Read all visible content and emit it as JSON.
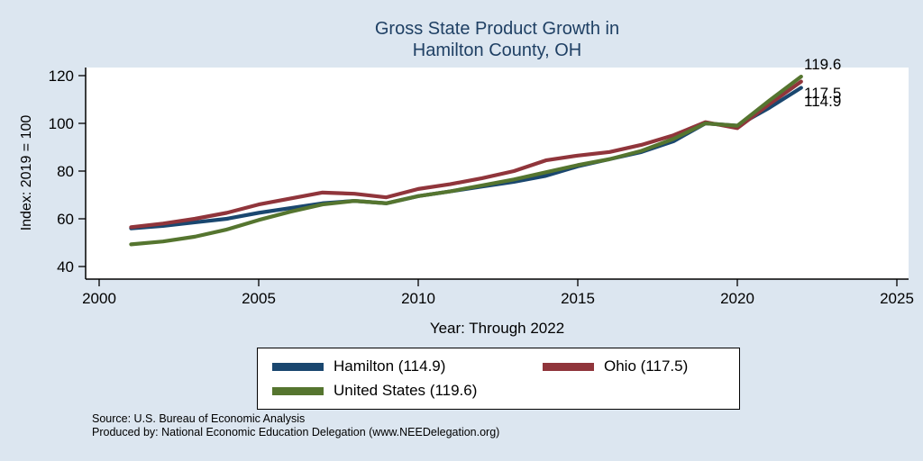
{
  "title": {
    "line1": "Gross State Product Growth in",
    "line2": "Hamilton County, OH"
  },
  "axes": {
    "y_label": "Index: 2019 = 100",
    "x_label": "Year: Through 2022"
  },
  "end_labels": {
    "us": "119.6",
    "ohio": "117.5",
    "hamilton": "114.9"
  },
  "legend": {
    "items": [
      {
        "label": "Hamilton  (114.9)",
        "color": "#1a476f"
      },
      {
        "label": "Ohio (117.5)",
        "color": "#90353b"
      },
      {
        "label": "United States (119.6)",
        "color": "#55752f"
      }
    ]
  },
  "footer": {
    "source": "Source: U.S. Bureau of Economic Analysis",
    "produced": "Produced by: National Economic Education Delegation (www.NEEDelegation.org)"
  },
  "chart_data": {
    "type": "line",
    "title": "Gross State Product Growth in Hamilton County, OH",
    "xlabel": "Year: Through 2022",
    "ylabel": "Index: 2019 = 100",
    "xlim": [
      2000,
      2025
    ],
    "ylim": [
      40,
      120
    ],
    "x_ticks": [
      2000,
      2005,
      2010,
      2015,
      2020,
      2025
    ],
    "y_ticks": [
      40,
      60,
      80,
      100,
      120
    ],
    "grid": false,
    "legend_position": "bottom",
    "x": [
      2001,
      2002,
      2003,
      2004,
      2005,
      2006,
      2007,
      2008,
      2009,
      2010,
      2011,
      2012,
      2013,
      2014,
      2015,
      2016,
      2017,
      2018,
      2019,
      2020,
      2021,
      2022
    ],
    "series": [
      {
        "name": "Hamilton",
        "final": 114.9,
        "color": "#1a476f",
        "values": [
          56.0,
          57.0,
          58.5,
          60.0,
          62.5,
          64.5,
          66.5,
          67.5,
          66.5,
          69.5,
          71.5,
          73.5,
          75.5,
          78.0,
          82.0,
          85.0,
          88.0,
          92.5,
          100.0,
          99.0,
          106.5,
          114.9
        ]
      },
      {
        "name": "Ohio",
        "final": 117.5,
        "color": "#90353b",
        "values": [
          56.5,
          58.0,
          60.0,
          62.5,
          66.0,
          68.5,
          71.0,
          70.5,
          69.0,
          72.5,
          74.5,
          77.0,
          80.0,
          84.5,
          86.5,
          88.0,
          91.0,
          95.0,
          100.5,
          98.0,
          108.0,
          117.5
        ]
      },
      {
        "name": "United States",
        "final": 119.6,
        "color": "#55752f",
        "values": [
          49.3,
          50.5,
          52.5,
          55.5,
          59.5,
          63.0,
          66.0,
          67.5,
          66.5,
          69.5,
          71.5,
          74.0,
          76.5,
          79.5,
          82.5,
          85.0,
          88.5,
          93.5,
          100.0,
          99.0,
          109.5,
          119.6
        ]
      }
    ]
  }
}
